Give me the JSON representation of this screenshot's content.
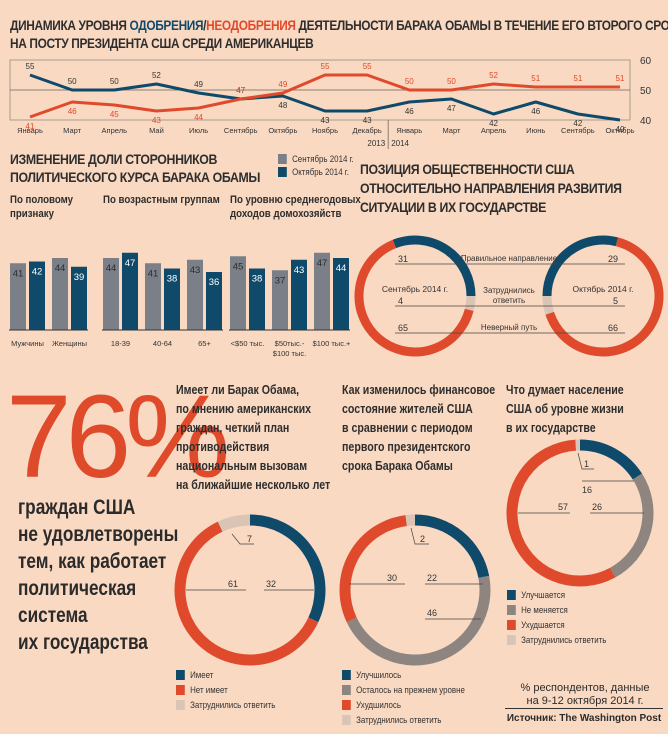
{
  "title": {
    "part1": "ДИНАМИКА УРОВНЯ ",
    "approval": "ОДОБРЕНИЯ",
    "slash": "/",
    "disapproval": "НЕОДОБРЕНИЯ",
    "part2": " ДЕЯТЕЛЬНОСТИ БАРАКА ОБАМЫ В ТЕЧЕНИЕ ЕГО ВТОРОГО СРОКА",
    "line2": "НА ПОСТУ ПРЕЗИДЕНТА США СРЕДИ АМЕРИКАНЦЕВ"
  },
  "colors": {
    "approval": "#0f4a6b",
    "disapproval": "#e04a2c",
    "september": "#7b8088",
    "undecided": "#d9c4b6",
    "same": "#8f8580",
    "background": "#f9d9c2"
  },
  "chart_data": [
    {
      "id": "approval_line",
      "type": "line",
      "title": "Динамика уровня одобрения/неодобрения деятельности Барака Обамы в течение его второго срока на посту президента США среди американцев",
      "x": [
        "Январь",
        "Март",
        "Апрель",
        "Май",
        "Июль",
        "Сентябрь",
        "Октябрь",
        "Ноябрь",
        "Декабрь",
        "Январь",
        "Март",
        "Апрель",
        "Июнь",
        "Сентябрь",
        "Октябрь"
      ],
      "year_labels": [
        {
          "label": "2013",
          "after_index": 8
        },
        {
          "label": "2014",
          "from_index": 9
        }
      ],
      "series": [
        {
          "name": "Одобрение",
          "color": "#0f4a6b",
          "values": [
            55,
            50,
            50,
            52,
            49,
            47,
            48,
            43,
            43,
            46,
            47,
            42,
            46,
            42,
            40
          ]
        },
        {
          "name": "Неодобрение",
          "color": "#e04a2c",
          "values": [
            41,
            46,
            45,
            43,
            44,
            47,
            49,
            55,
            55,
            50,
            50,
            52,
            51,
            51,
            51
          ]
        }
      ],
      "ylim": [
        40,
        60
      ],
      "yticks": [
        "40",
        "50",
        "60"
      ],
      "grid": true
    },
    {
      "id": "supporters_bars",
      "type": "bar",
      "title": "ИЗМЕНЕНИЕ ДОЛИ СТОРОННИКОВ ПОЛИТИЧЕСКОГО КУРСА БАРАКА ОБАМЫ",
      "legend": [
        "Сентябрь 2014 г.",
        "Октябрь 2014 г."
      ],
      "groups": [
        {
          "title": "По половому признаку",
          "categories": [
            "Мужчины",
            "Женщины"
          ],
          "series": [
            {
              "name": "Сентябрь 2014 г.",
              "values": [
                41,
                44
              ]
            },
            {
              "name": "Октябрь 2014 г.",
              "values": [
                42,
                39
              ]
            }
          ]
        },
        {
          "title": "По возрастным группам",
          "categories": [
            "18-39",
            "40-64",
            "65+"
          ],
          "series": [
            {
              "name": "Сентябрь 2014 г.",
              "values": [
                44,
                41,
                43
              ]
            },
            {
              "name": "Октябрь 2014 г.",
              "values": [
                47,
                38,
                36
              ]
            }
          ]
        },
        {
          "title": "По уровню среднегодовых доходов домохозяйств",
          "categories": [
            "<$50 тыс.",
            "$50тыс.-$100 тыс.",
            "$100 тыс.+"
          ],
          "series": [
            {
              "name": "Сентябрь 2014 г.",
              "values": [
                45,
                37,
                47
              ]
            },
            {
              "name": "Октябрь 2014 г.",
              "values": [
                38,
                43,
                44
              ]
            }
          ]
        }
      ]
    },
    {
      "id": "direction_donuts",
      "type": "pie",
      "title": "ПОЗИЦИЯ ОБЩЕСТВЕННОСТИ США ОТНОСИТЕЛЬНО НАПРАВЛЕНИЯ РАЗВИТИЯ СИТУАЦИИ В ИХ ГОСУДАРСТВЕ",
      "categories": [
        "Правильное направление",
        "Затруднились ответить",
        "Неверный путь"
      ],
      "series": [
        {
          "name": "Сентябрь 2014 г.",
          "values": [
            31,
            4,
            65
          ]
        },
        {
          "name": "Октябрь 2014 г.",
          "values": [
            29,
            5,
            66
          ]
        }
      ]
    },
    {
      "id": "plan_donut",
      "type": "pie",
      "title": "Имеет ли Барак Обама, по мнению американских граждан, четкий план противодействия национальным вызовам на ближайшие несколько лет",
      "categories": [
        "Имеет",
        "Нет имеет",
        "Затруднились ответить"
      ],
      "values": [
        32,
        61,
        7
      ]
    },
    {
      "id": "finance_donut",
      "type": "pie",
      "title": "Как изменилось финансовое состояние жителей США в сравнении с периодом первого президентского срока Барака Обамы",
      "categories": [
        "Улучшилось",
        "Осталось на прежнем уровне",
        "Ухудшилось",
        "Затруднились ответить"
      ],
      "values": [
        22,
        46,
        30,
        2
      ]
    },
    {
      "id": "living_donut",
      "type": "pie",
      "title": "Что думает население США об уровне жизни в их государстве",
      "categories": [
        "Улучшается",
        "Не меняется",
        "Ухудшается",
        "Затруднились ответить"
      ],
      "values": [
        16,
        26,
        57,
        1
      ]
    }
  ],
  "bars_section": {
    "title_l1": "ИЗМЕНЕНИЕ ДОЛИ СТОРОННИКОВ",
    "title_l2": "ПОЛИТИЧЕСКОГО КУРСА БАРАКА ОБАМЫ",
    "legend_sep": "Сентябрь 2014 г.",
    "legend_oct": "Октябрь 2014 г.",
    "g1_l1": "По половому",
    "g1_l2": "признаку",
    "g2_l1": "По возрастным группам",
    "g3_l1": "По уровню среднегодовых",
    "g3_l2": "доходов домохозяйств"
  },
  "direction_section": {
    "title_l1": "ПОЗИЦИЯ ОБЩЕСТВЕННОСТИ США",
    "title_l2": "ОТНОСИТЕЛЬНО НАПРАВЛЕНИЯ РАЗВИТИЯ",
    "title_l3": "СИТУАЦИИ В ИХ ГОСУДАРСТВЕ",
    "sep_label": "Сентябрь 2014 г.",
    "oct_label": "Октябрь 2014 г.",
    "right_dir": "Правильное направление",
    "undecided_l1": "Затруднились",
    "undecided_l2": "ответить",
    "wrong": "Неверный путь"
  },
  "big_stat": {
    "value": "76%",
    "lines": [
      "граждан США",
      "не удовлетворены",
      "тем, как работает",
      "политическая",
      "система",
      "их государства"
    ]
  },
  "q_plan": {
    "lines": [
      "Имеет ли Барак Обама,",
      "по мнению американских",
      "граждан, четкий план",
      "противодействия",
      "национальным вызовам",
      "на ближайшие несколько лет"
    ],
    "legend": [
      "Имеет",
      "Нет имеет",
      "Затруднились ответить"
    ]
  },
  "q_finance": {
    "lines": [
      "Как изменилось финансовое",
      "состояние жителей США",
      "в сравнении с периодом",
      "первого президентского",
      "срока Барака Обамы"
    ],
    "legend": [
      "Улучшилось",
      "Осталось на прежнем уровне",
      "Ухудшилось",
      "Затруднились ответить"
    ]
  },
  "q_living": {
    "lines": [
      "Что думает население",
      "США об уровне жизни",
      "в их государстве"
    ],
    "legend": [
      "Улучшается",
      "Не меняется",
      "Ухудшается",
      "Затруднились ответить"
    ]
  },
  "footer": {
    "note_l1": "% респондентов, данные",
    "note_l2": "на 9-12 октября 2014 г.",
    "source": "Источник: The Washington Post"
  }
}
